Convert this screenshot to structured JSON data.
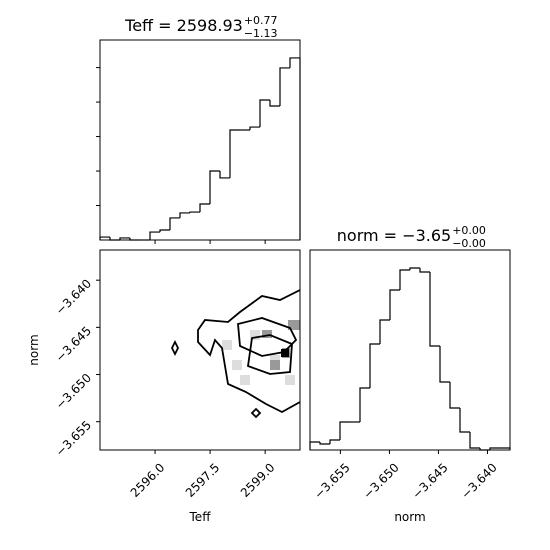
{
  "chart_data": [
    {
      "type": "histogram",
      "title": "Teff = 2598.93",
      "title_sup": "+0.77",
      "title_sub": "−1.13",
      "color": "#000000",
      "bins": [
        2594.5,
        2594.7725,
        2595.045,
        2595.3175,
        2595.59,
        2595.8625,
        2596.135,
        2596.4075,
        2596.68,
        2596.9525,
        2597.225,
        2597.4975,
        2597.77,
        2598.0425,
        2598.315,
        2598.5875,
        2598.86,
        2599.1325,
        2599.405,
        2599.6775,
        2599.95
      ],
      "values": [
        17,
        0,
        12,
        0,
        0,
        46,
        58,
        128,
        157,
        162,
        209,
        400,
        360,
        638,
        638,
        655,
        812,
        777,
        998,
        1056
      ],
      "xlim": [
        2594.5,
        2599.95
      ],
      "ylim": [
        0,
        1160
      ],
      "yticks": [
        200,
        400,
        600,
        800,
        1000
      ]
    },
    {
      "type": "hist2d",
      "xlabel": "Teff",
      "ylabel": "norm",
      "color": "#000000",
      "xlim": [
        2594.5,
        2599.95
      ],
      "ylim": [
        -3.658,
        -3.6368
      ],
      "xticks": [
        {
          "value": 2596,
          "label": "2596.0"
        },
        {
          "value": 2597.5,
          "label": "2597.5"
        },
        {
          "value": 2599,
          "label": "2599.0"
        }
      ],
      "yticks": [
        {
          "value": -3.64,
          "label": "−3.640"
        },
        {
          "value": -3.645,
          "label": "−3.645"
        },
        {
          "value": -3.65,
          "label": "−3.650"
        },
        {
          "value": -3.655,
          "label": "−3.655"
        }
      ]
    },
    {
      "type": "histogram",
      "title": "norm = −3.65",
      "title_sup": "+0.00",
      "title_sub": "−0.00",
      "xlabel": "norm",
      "color": "#000000",
      "bins": [
        -3.6581,
        -3.65708,
        -3.65606,
        -3.65504,
        -3.65402,
        -3.653,
        -3.65198,
        -3.65096,
        -3.64994,
        -3.64892,
        -3.6479,
        -3.64688,
        -3.64586,
        -3.64484,
        -3.64382,
        -3.6428,
        -3.64178,
        -3.64076,
        -3.63974,
        -3.63872,
        -3.6377
      ],
      "values": [
        8,
        6,
        10,
        28,
        28,
        62,
        106,
        130,
        160,
        180,
        182,
        178,
        104,
        68,
        42,
        18,
        2,
        0,
        2,
        2
      ],
      "xlim": [
        -3.6581,
        -3.6377
      ],
      "ylim": [
        0,
        200
      ],
      "xticks": [
        {
          "value": -3.655,
          "label": "−3.655"
        },
        {
          "value": -3.65,
          "label": "−3.650"
        },
        {
          "value": -3.645,
          "label": "−3.645"
        },
        {
          "value": -3.64,
          "label": "−3.640"
        }
      ]
    }
  ]
}
